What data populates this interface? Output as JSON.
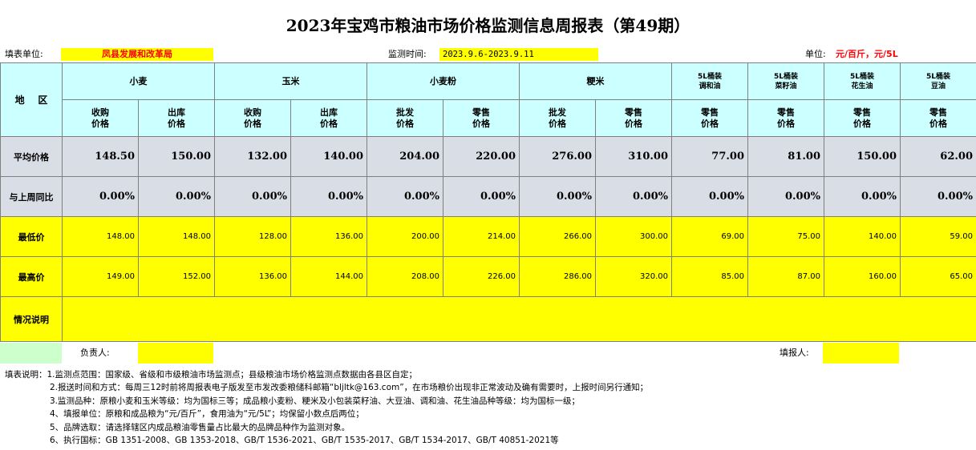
{
  "title": "2023年宝鸡市粮油市场价格监测信息周报表（第49期）",
  "meta": {
    "unit_label": "填表单位:",
    "unit_value": "凤县发展和改革局",
    "period_label": "监测时间:",
    "period_value": "2023.9.6-2023.9.11",
    "price_unit_label": "单位:",
    "price_unit_value": "元/百斤，元/5L"
  },
  "header": {
    "region": "地    区",
    "groups": [
      "小麦",
      "玉米",
      "小麦粉",
      "粳米"
    ],
    "oils": [
      "5L桶装\n调和油",
      "5L桶装\n菜籽油",
      "5L桶装\n花生油",
      "5L桶装\n豆油"
    ],
    "subs": [
      "收购\n价格",
      "出库\n价格",
      "收购\n价格",
      "出库\n价格",
      "批发\n价格",
      "零售\n价格",
      "批发\n价格",
      "零售\n价格",
      "零售\n价格",
      "零售\n价格",
      "零售\n价格",
      "零售\n价格"
    ]
  },
  "rows": {
    "avg": {
      "label": "平均价格",
      "values": [
        "148.50",
        "150.00",
        "132.00",
        "140.00",
        "204.00",
        "220.00",
        "276.00",
        "310.00",
        "77.00",
        "81.00",
        "150.00",
        "62.00"
      ]
    },
    "yoy": {
      "label": "与上周同比",
      "values": [
        "0.00%",
        "0.00%",
        "0.00%",
        "0.00%",
        "0.00%",
        "0.00%",
        "0.00%",
        "0.00%",
        "0.00%",
        "0.00%",
        "0.00%",
        "0.00%"
      ]
    },
    "min": {
      "label": "最低价",
      "values": [
        "148.00",
        "148.00",
        "128.00",
        "136.00",
        "200.00",
        "214.00",
        "266.00",
        "300.00",
        "69.00",
        "75.00",
        "140.00",
        "59.00"
      ]
    },
    "max": {
      "label": "最高价",
      "values": [
        "149.00",
        "152.00",
        "136.00",
        "144.00",
        "208.00",
        "226.00",
        "286.00",
        "320.00",
        "85.00",
        "87.00",
        "160.00",
        "65.00"
      ]
    },
    "note": {
      "label": "情况说明"
    }
  },
  "footer": {
    "person_label": "负责人:",
    "filler_label": "填报人:"
  },
  "notes": [
    "填表说明：1.监测点范围：国家级、省级和市级粮油市场监测点；县级粮油市场价格监测点数据由各县区自定；",
    "2.报送时间和方式：每周三12时前将周报表电子版发至市发改委粮储科邮箱“bljltk@163.com”，在市场粮价出现非正常波动及确有需要时，上报时间另行通知；",
    "3.监测品种：原粮小麦和玉米等级：均为国标三等；成品粮小麦粉、粳米及小包装菜籽油、大豆油、调和油、花生油品种等级：均为国标一级；",
    "4、填报单位：原粮和成品粮为“元/百斤”，食用油为“元/5L”；均保留小数点后两位；",
    "5、品牌选取：请选择辖区内成品粮油零售量占比最大的品牌品种作为监测对象。",
    "6、执行国标：GB 1351-2008、GB 1353-2018、GB/T 1536-2021、GB/T 1535-2017、GB/T 1534-2017、GB/T 40851-2021等"
  ],
  "colors": {
    "header_bg": "#ccffff",
    "stat_bg": "#d9dde6",
    "highlight": "#ffff00",
    "footer_bg": "#ccffcc",
    "accent_text": "#ff0000"
  }
}
